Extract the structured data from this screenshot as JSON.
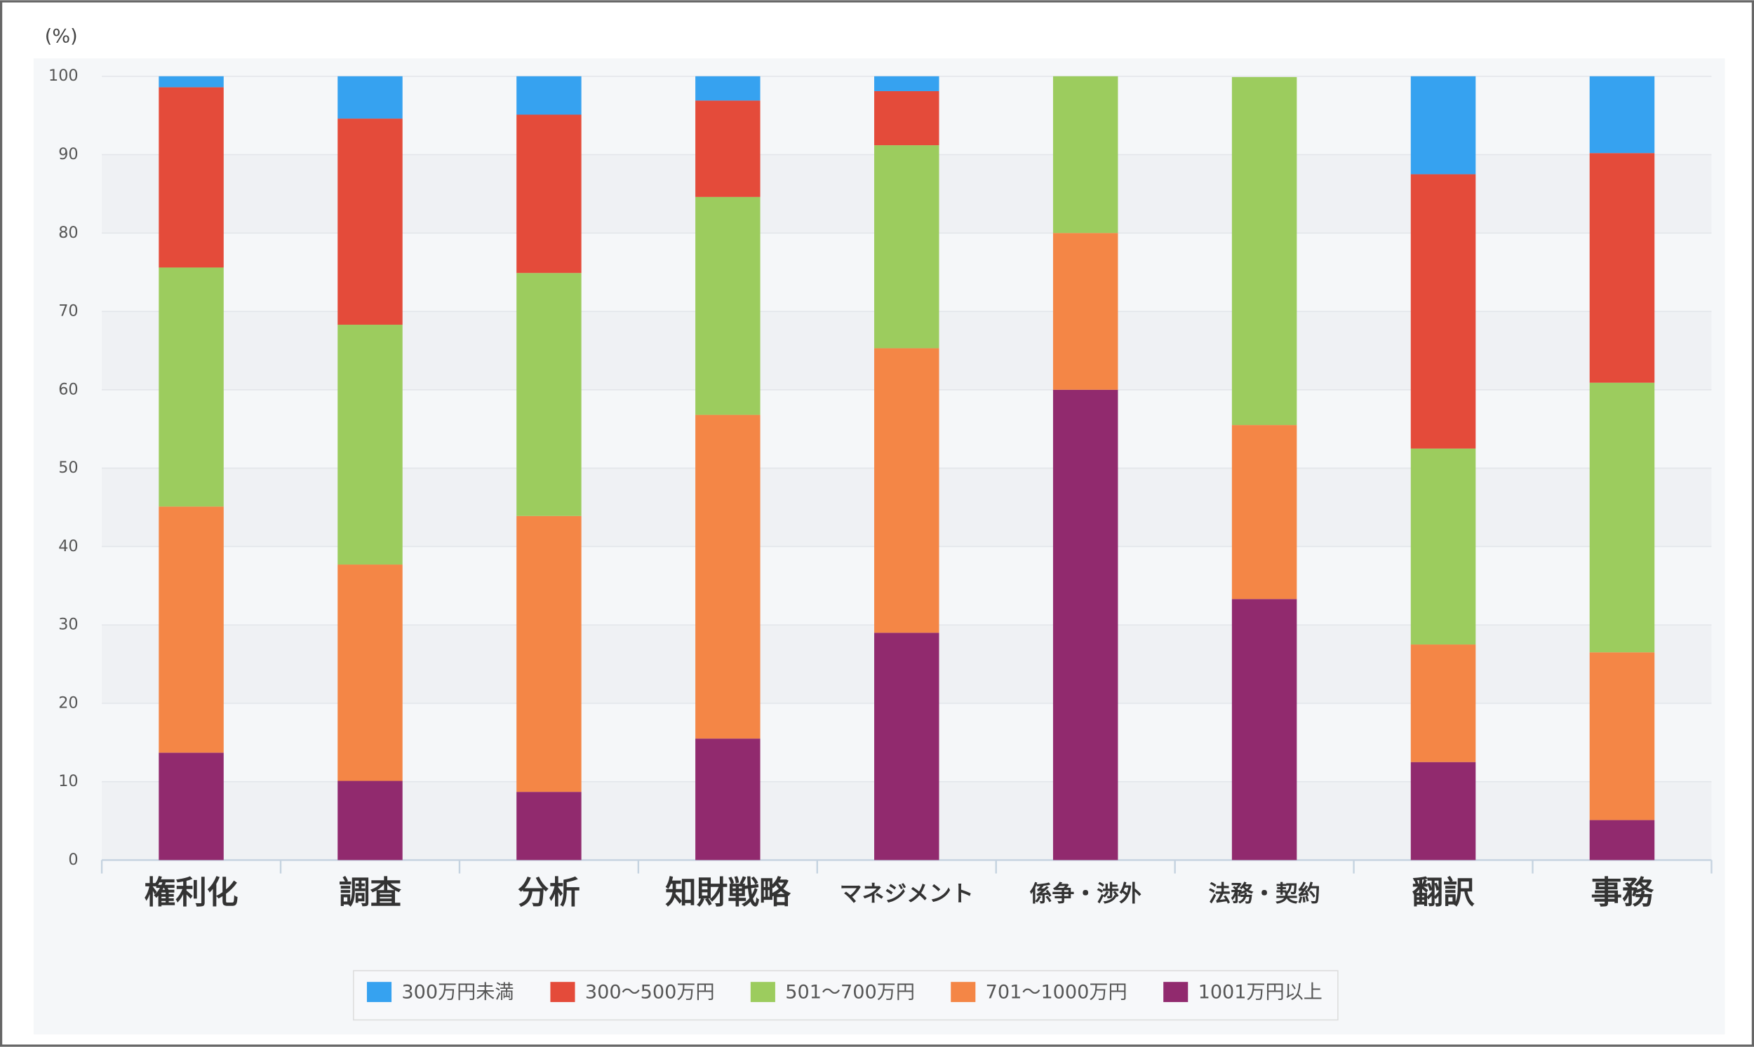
{
  "chart_data": {
    "type": "stacked_bar",
    "y_label": "(%)",
    "categories": [
      "権利化",
      "調査",
      "分析",
      "知財戦略",
      "マネジメント",
      "係争・渉外",
      "法務・契約",
      "翻訳",
      "事務"
    ],
    "series": [
      {
        "name": "300万円未満",
        "color": "#36a2f0",
        "values": [
          1.4,
          5.4,
          4.9,
          3.1,
          1.9,
          0,
          0,
          12.5,
          9.8
        ]
      },
      {
        "name": "300～500万円",
        "color": "#e44b3a",
        "values": [
          23.0,
          26.3,
          20.2,
          12.3,
          6.9,
          0,
          0,
          35.0,
          29.3
        ]
      },
      {
        "name": "501～700万円",
        "color": "#9ccc5e",
        "values": [
          30.5,
          30.6,
          31.0,
          27.8,
          25.9,
          20,
          44.4,
          25.0,
          34.4
        ]
      },
      {
        "name": "701～1000万円",
        "color": "#f48646",
        "values": [
          31.4,
          27.6,
          35.2,
          41.3,
          36.3,
          20,
          22.2,
          15.0,
          21.4
        ]
      },
      {
        "name": "1001万円以上",
        "color": "#912a6e",
        "values": [
          13.7,
          10.1,
          8.7,
          15.5,
          29.0,
          60,
          33.3,
          12.5,
          5.1
        ]
      }
    ],
    "ylim": [
      0,
      100
    ],
    "yticks": [
      0,
      10,
      20,
      30,
      40,
      50,
      60,
      70,
      80,
      90,
      100
    ],
    "grid": true,
    "legend": "bottom"
  }
}
